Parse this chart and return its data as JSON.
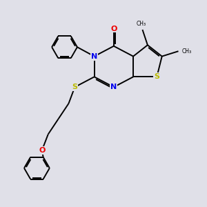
{
  "bg_color": "#e0e0e8",
  "atom_colors": {
    "C": "#000000",
    "N": "#0000ee",
    "O": "#ee0000",
    "S": "#bbbb00"
  },
  "bond_color": "#000000",
  "bond_width": 1.4,
  "figsize": [
    3.0,
    3.0
  ],
  "dpi": 100
}
